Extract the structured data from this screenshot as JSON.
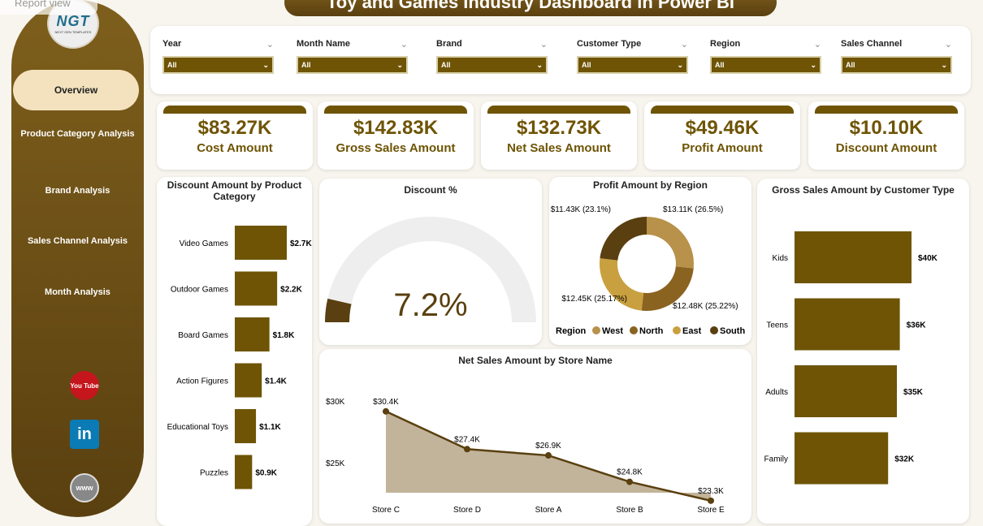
{
  "app": {
    "report_view": "Report view",
    "title": "Toy and Games Industry Dashboard in Power BI",
    "logo_text": "NGT",
    "logo_sub": "NEXT GEN TEMPLATES"
  },
  "nav": [
    {
      "label": "Overview"
    },
    {
      "label": "Product Category Analysis"
    },
    {
      "label": "Brand Analysis"
    },
    {
      "label": "Sales Channel Analysis"
    },
    {
      "label": "Month Analysis"
    }
  ],
  "social": {
    "youtube": "You Tube",
    "linkedin": "in",
    "web": "www"
  },
  "filters": [
    {
      "label": "Year",
      "value": "All"
    },
    {
      "label": "Month Name",
      "value": "All"
    },
    {
      "label": "Brand",
      "value": "All"
    },
    {
      "label": "Customer Type",
      "value": "All"
    },
    {
      "label": "Region",
      "value": "All"
    },
    {
      "label": "Sales Channel",
      "value": "All"
    }
  ],
  "kpis": [
    {
      "value": "$83.27K",
      "label": "Cost Amount"
    },
    {
      "value": "$142.83K",
      "label": "Gross Sales Amount"
    },
    {
      "value": "$132.73K",
      "label": "Net Sales Amount"
    },
    {
      "value": "$49.46K",
      "label": "Profit Amount"
    },
    {
      "value": "$10.10K",
      "label": "Discount Amount"
    }
  ],
  "colors": {
    "accent": "#6e5404",
    "west": "#b8914a",
    "north": "#8a6320",
    "east": "#c9a040",
    "south": "#5a3f10"
  },
  "chart_data": [
    {
      "type": "bar",
      "title": "Discount Amount by Product Category",
      "categories": [
        "Video Games",
        "Outdoor Games",
        "Board Games",
        "Action Figures",
        "Educational Toys",
        "Puzzles"
      ],
      "values": [
        2.7,
        2.2,
        1.8,
        1.4,
        1.1,
        0.9
      ],
      "labels": [
        "$2.7K",
        "$2.2K",
        "$1.8K",
        "$1.4K",
        "$1.1K",
        "$0.9K"
      ]
    },
    {
      "type": "gauge",
      "title": "Discount %",
      "value": 7.2,
      "label": "7.2%",
      "max": 100
    },
    {
      "type": "pie",
      "title": "Profit Amount by Region",
      "legend_title": "Region",
      "slices": [
        {
          "name": "West",
          "value": 13.11,
          "label": "$13.11K (26.5%)"
        },
        {
          "name": "North",
          "value": 12.48,
          "label": "$12.48K (25.22%)"
        },
        {
          "name": "East",
          "value": 12.45,
          "label": "$12.45K (25.17%)"
        },
        {
          "name": "South",
          "value": 11.43,
          "label": "$11.43K (23.1%)"
        }
      ]
    },
    {
      "type": "area",
      "title": "Net Sales Amount by Store Name",
      "categories": [
        "Store C",
        "Store D",
        "Store A",
        "Store B",
        "Store E"
      ],
      "values": [
        30.4,
        27.4,
        26.9,
        24.8,
        23.3
      ],
      "labels": [
        "$30.4K",
        "$27.4K",
        "$26.9K",
        "$24.8K",
        "$23.3K"
      ],
      "yticks": [
        "$30K",
        "$25K"
      ]
    },
    {
      "type": "bar",
      "title": "Gross Sales Amount by Customer Type",
      "categories": [
        "Kids",
        "Teens",
        "Adults",
        "Family"
      ],
      "values": [
        40,
        36,
        35,
        32
      ],
      "labels": [
        "$40K",
        "$36K",
        "$35K",
        "$32K"
      ]
    }
  ]
}
